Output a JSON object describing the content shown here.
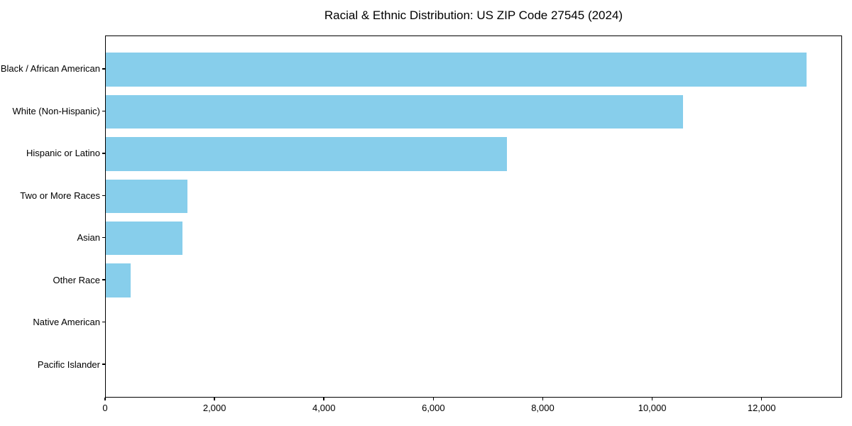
{
  "chart_data": {
    "type": "bar",
    "orientation": "horizontal",
    "title": "Racial & Ethnic Distribution: US ZIP Code 27545 (2024)",
    "categories": [
      "Black / African American",
      "White (Non-Hispanic)",
      "Hispanic or Latino",
      "Two or More Races",
      "Asian",
      "Other Race",
      "Native American",
      "Pacific Islander"
    ],
    "values": [
      12830,
      10570,
      7340,
      1490,
      1400,
      455,
      0,
      0
    ],
    "xlabel": "",
    "ylabel": "",
    "xlim": [
      0,
      13470
    ],
    "xticks": [
      0,
      2000,
      4000,
      6000,
      8000,
      10000,
      12000
    ],
    "xtick_labels": [
      "0",
      "2,000",
      "4,000",
      "6,000",
      "8,000",
      "10,000",
      "12,000"
    ],
    "bar_color": "#87CEEB",
    "frame_color": "#000000",
    "grid": false,
    "legend": null
  }
}
